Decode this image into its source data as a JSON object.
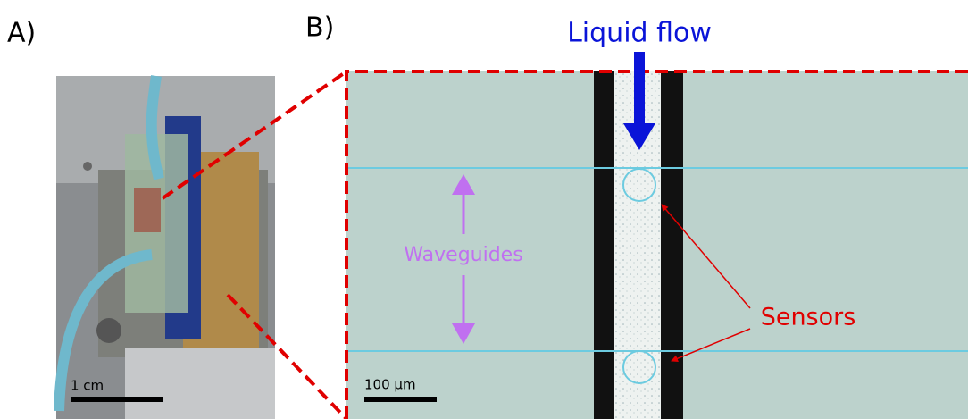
{
  "panels": {
    "a": "A)",
    "b": "B)"
  },
  "annotations": {
    "liquid_flow": "Liquid flow",
    "waveguides": "Waveguides",
    "sensors": "Sensors"
  },
  "scale_bars": {
    "a": "1 cm",
    "b": "100 µm"
  }
}
